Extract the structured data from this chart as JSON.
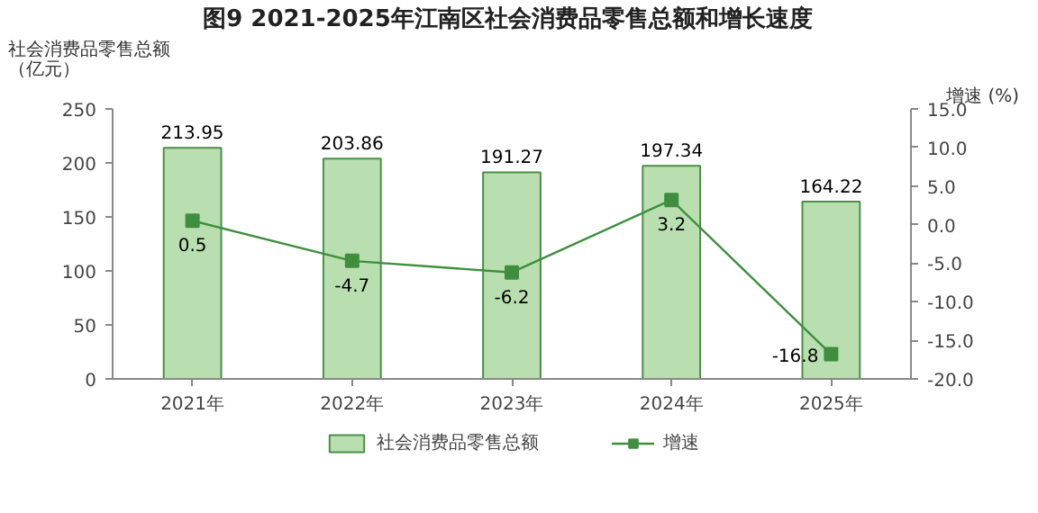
{
  "chart_data": {
    "type": "bar",
    "title": "图9  2021-2025年江南区社会消费品零售总额和增长速度",
    "ylabel": "社会消费品零售总额（亿元）",
    "y2label": "增速 (%)",
    "categories": [
      "2021年",
      "2022年",
      "2023年",
      "2024年",
      "2025年"
    ],
    "series": [
      {
        "name": "社会消费品零售总额",
        "color": "#b9dfb0",
        "values": [
          213.95,
          203.86,
          191.27,
          197.34,
          164.22
        ]
      },
      {
        "name": "增速",
        "type": "line",
        "axis": "y2",
        "color": "#3e8e3e",
        "values": [
          0.5,
          -4.7,
          -6.2,
          3.2,
          -16.8
        ]
      }
    ],
    "ylim": [
      0,
      250
    ],
    "yticks": [
      0,
      50,
      100,
      150,
      200,
      250
    ],
    "y2lim": [
      -20,
      15
    ],
    "y2ticks": [
      {
        "value": -20,
        "label": "-20.0"
      },
      {
        "value": -15,
        "label": "-15.0"
      },
      {
        "value": -10,
        "label": "-10.0"
      },
      {
        "value": -5,
        "label": "-5.0"
      },
      {
        "value": 0,
        "label": "0.0"
      },
      {
        "value": 5,
        "label": "5.0"
      },
      {
        "value": 10,
        "label": "10.0"
      },
      {
        "value": 15,
        "label": "15.0"
      }
    ],
    "data_labels": true,
    "legend": "bottom",
    "marker": "square",
    "grid": false
  }
}
